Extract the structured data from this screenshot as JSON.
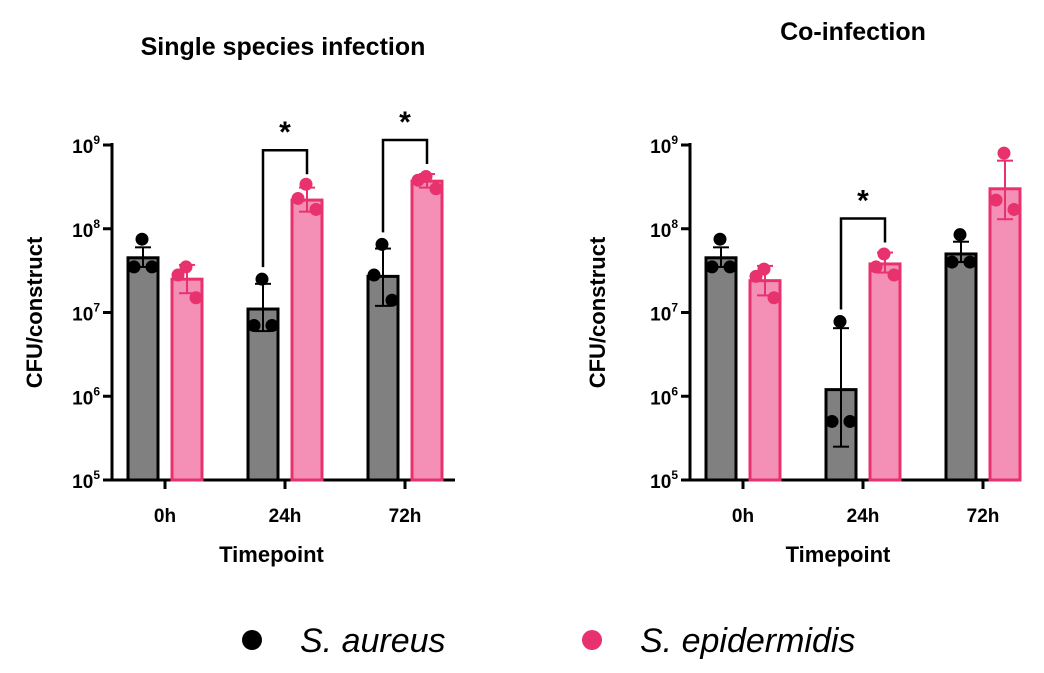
{
  "colors": {
    "s_aureus_bar": "#808080",
    "s_aureus_point": "#000000",
    "s_epidermidis_bar": "#f48fb5",
    "s_epidermidis_edge": "#e8326e",
    "s_epidermidis_point": "#e8326e"
  },
  "legend": {
    "position": "bottom-center",
    "items": [
      {
        "label": "S. aureus",
        "color": "#000000"
      },
      {
        "label": "S. epidermidis",
        "color": "#e8326e"
      }
    ]
  },
  "chart_data": [
    {
      "type": "bar",
      "title": "Single species infection",
      "xlabel": "Timepoint",
      "ylabel": "CFU/construct",
      "yscale": "log",
      "ylim": [
        100000,
        1000000000
      ],
      "yticks": [
        {
          "base": "10",
          "exp": "5"
        },
        {
          "base": "10",
          "exp": "6"
        },
        {
          "base": "10",
          "exp": "7"
        },
        {
          "base": "10",
          "exp": "8"
        },
        {
          "base": "10",
          "exp": "9"
        }
      ],
      "categories": [
        "0h",
        "24h",
        "72h"
      ],
      "series": [
        {
          "name": "S. aureus",
          "values": [
            45000000,
            11000000,
            27000000
          ],
          "err_low": [
            35000000,
            6000000,
            12000000
          ],
          "err_high": [
            60000000,
            22000000,
            58000000
          ],
          "points": [
            [
              75000000,
              35000000,
              35000000
            ],
            [
              25000000,
              7000000,
              7000000
            ],
            [
              65000000,
              28000000,
              14000000
            ]
          ]
        },
        {
          "name": "S. epidermidis",
          "values": [
            25000000,
            220000000,
            370000000
          ],
          "err_low": [
            17000000,
            160000000,
            310000000
          ],
          "err_high": [
            37000000,
            310000000,
            450000000
          ],
          "points": [
            [
              35000000,
              28000000,
              15000000
            ],
            [
              340000000,
              230000000,
              170000000
            ],
            [
              420000000,
              380000000,
              300000000
            ]
          ]
        }
      ],
      "annotations": [
        {
          "category": "24h",
          "text": "*"
        },
        {
          "category": "72h",
          "text": "*"
        }
      ]
    },
    {
      "type": "bar",
      "title": "Co-infection",
      "xlabel": "Timepoint",
      "ylabel": "CFU/construct",
      "yscale": "log",
      "ylim": [
        100000,
        1000000000
      ],
      "yticks": [
        {
          "base": "10",
          "exp": "5"
        },
        {
          "base": "10",
          "exp": "6"
        },
        {
          "base": "10",
          "exp": "7"
        },
        {
          "base": "10",
          "exp": "8"
        },
        {
          "base": "10",
          "exp": "9"
        }
      ],
      "categories": [
        "0h",
        "24h",
        "72h"
      ],
      "series": [
        {
          "name": "S. aureus",
          "values": [
            45000000,
            1200000,
            50000000
          ],
          "err_low": [
            35000000,
            250000,
            40000000
          ],
          "err_high": [
            60000000,
            6500000,
            70000000
          ],
          "points": [
            [
              75000000,
              35000000,
              35000000
            ],
            [
              7800000,
              500000,
              500000
            ],
            [
              85000000,
              40000000,
              40000000
            ]
          ]
        },
        {
          "name": "S. epidermidis",
          "values": [
            24000000,
            38000000,
            300000000
          ],
          "err_low": [
            16000000,
            30000000,
            130000000
          ],
          "err_high": [
            36000000,
            52000000,
            650000000
          ],
          "points": [
            [
              33000000,
              27000000,
              15000000
            ],
            [
              50000000,
              35000000,
              28000000
            ],
            [
              800000000,
              220000000,
              170000000
            ]
          ]
        }
      ],
      "annotations": [
        {
          "category": "24h",
          "text": "*"
        }
      ]
    }
  ]
}
